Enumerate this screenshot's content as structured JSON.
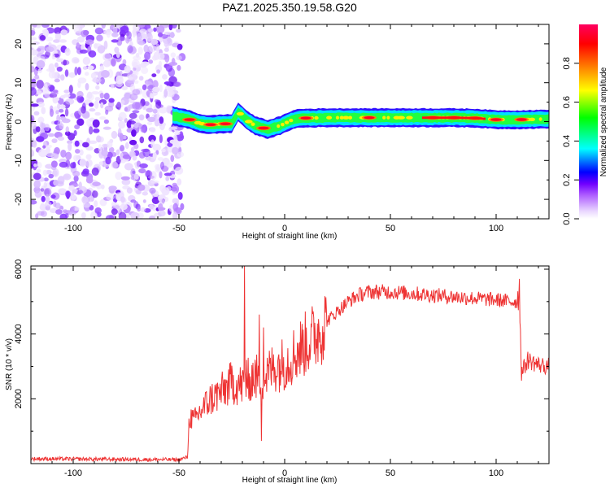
{
  "title": "PAZ1.2025.350.19.58.G20",
  "chart_data": [
    {
      "type": "heatmap",
      "title": "PAZ1.2025.350.19.58.G20",
      "xlabel": "Height of straight line (km)",
      "ylabel": "Frequency (Hz)",
      "xlim": [
        -120,
        125
      ],
      "ylim": [
        -25,
        25
      ],
      "xticks": [
        -100,
        -50,
        0,
        50,
        100
      ],
      "yticks": [
        -20,
        -10,
        0,
        10,
        20
      ],
      "colorbar": {
        "label": "Normalized spectral amplitude",
        "range": [
          0,
          1
        ],
        "ticks": [
          0.0,
          0.2,
          0.4,
          0.6,
          0.8
        ],
        "tick_labels": [
          "0.0",
          "0.2",
          "0.4",
          "0.6",
          "0.8"
        ],
        "colors": [
          "#e9d6ff",
          "#b060ff",
          "#7000ff",
          "#0000ff",
          "#00ffff",
          "#00ff00",
          "#ffff00",
          "#ff8000",
          "#ff0000",
          "#ff0060"
        ]
      },
      "noise_region_x": [
        -120,
        -50
      ],
      "signal_center": {
        "x": [
          -53,
          -45,
          -40,
          -35,
          -30,
          -25,
          -22,
          -20,
          -17,
          -14,
          -11,
          -8,
          -5,
          -2,
          0,
          3,
          6,
          10,
          20,
          30,
          40,
          50,
          60,
          70,
          80,
          90,
          100,
          110,
          120,
          125
        ],
        "y": [
          1.5,
          0.5,
          -0.5,
          -0.8,
          -0.6,
          -0.5,
          2.5,
          1.5,
          0.0,
          -1.0,
          -1.5,
          -2.0,
          -1.5,
          -1.0,
          -0.5,
          0.3,
          0.8,
          0.9,
          1.0,
          1.0,
          1.0,
          1.0,
          1.0,
          1.0,
          1.0,
          0.9,
          0.5,
          0.5,
          0.6,
          0.7
        ]
      },
      "hotspots_x": [
        -45,
        -35,
        -28,
        -10,
        10,
        40,
        70,
        80,
        90,
        100,
        112
      ]
    },
    {
      "type": "line",
      "xlabel": "Height of straight line (km)",
      "ylabel": "SNR (10 * v/v)",
      "xlim": [
        -120,
        125
      ],
      "ylim": [
        0,
        6100
      ],
      "xticks": [
        -100,
        -50,
        0,
        50,
        100
      ],
      "yticks": [
        2000,
        4000,
        6000
      ],
      "color": "#ee3333",
      "envelope": {
        "x": [
          -120,
          -50,
          -46,
          -45,
          -43,
          -40,
          -35,
          -30,
          -25,
          -20,
          -15,
          -10,
          -5,
          0,
          5,
          10,
          15,
          20,
          25,
          30,
          35,
          40,
          45,
          50,
          60,
          70,
          80,
          90,
          100,
          108,
          110,
          111,
          112,
          115,
          120,
          125
        ],
        "y": [
          150,
          120,
          200,
          1500,
          1300,
          1600,
          2000,
          2200,
          2500,
          2400,
          2700,
          2600,
          3000,
          3100,
          3400,
          3700,
          4000,
          4400,
          4700,
          5000,
          5200,
          5300,
          5300,
          5300,
          5250,
          5200,
          5150,
          5100,
          5050,
          5000,
          5000,
          5200,
          2800,
          3200,
          3050,
          3000
        ]
      },
      "spikes": [
        {
          "x": -19,
          "y": 6100
        },
        {
          "x": -18,
          "y": 3200
        },
        {
          "x": -17,
          "y": 2000
        },
        {
          "x": -12,
          "y": 4600
        },
        {
          "x": -11,
          "y": 700
        },
        {
          "x": -10,
          "y": 4200
        },
        {
          "x": 111,
          "y": 5700
        }
      ]
    }
  ]
}
